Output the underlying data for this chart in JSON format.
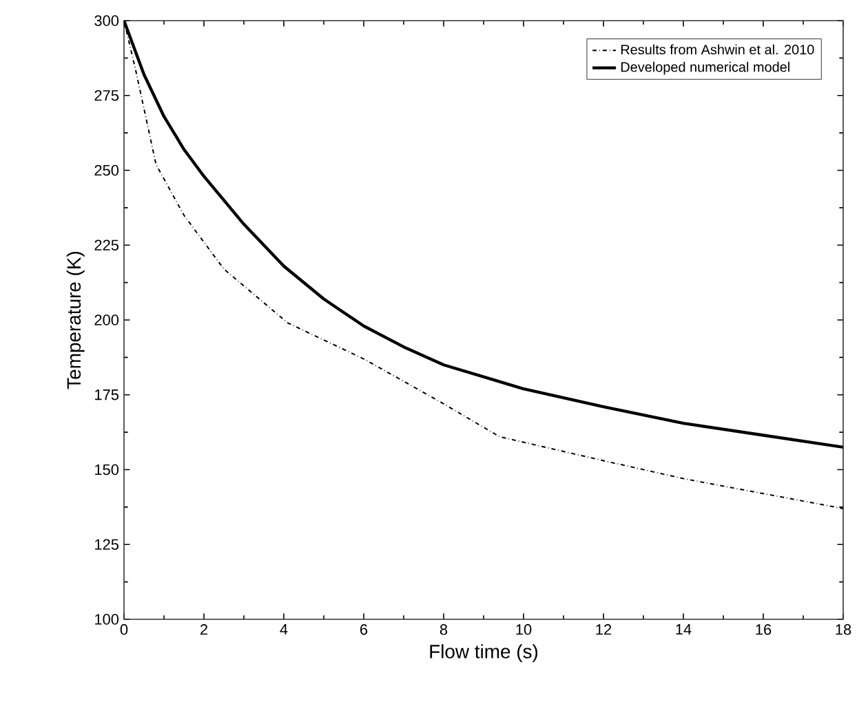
{
  "chart_data": {
    "type": "line",
    "xlabel": "Flow time (s)",
    "ylabel": "Temperature (K)",
    "xlim": [
      0,
      18
    ],
    "xticks": [
      0,
      2,
      4,
      6,
      8,
      10,
      12,
      14,
      16,
      18
    ],
    "ylim": [
      100,
      300
    ],
    "yticks": [
      100,
      125,
      150,
      175,
      200,
      225,
      250,
      275,
      300
    ],
    "grid": false,
    "legend": "top right",
    "marker": "none",
    "series": [
      {
        "name": "Results from Ashwin et al. 2010",
        "color": "#000000",
        "line_style": "dashdot",
        "x": [
          0,
          0.3,
          0.8,
          1.5,
          2.5,
          4.1,
          6,
          8,
          9.4,
          12,
          14,
          16,
          18
        ],
        "values": [
          300,
          283,
          252,
          235,
          217,
          199,
          187,
          172,
          161,
          153,
          147,
          142,
          137
        ]
      },
      {
        "name": "Developed numerical model",
        "color": "#000000",
        "line_style": "solid",
        "x": [
          0,
          0.5,
          1,
          1.5,
          2,
          3,
          4,
          5,
          6,
          7,
          8,
          9,
          10,
          12,
          14,
          16,
          18
        ],
        "values": [
          300,
          282,
          268,
          257,
          248,
          232,
          218,
          207,
          198,
          191,
          185,
          181,
          177,
          171,
          165.5,
          161.5,
          157.5
        ]
      }
    ]
  }
}
